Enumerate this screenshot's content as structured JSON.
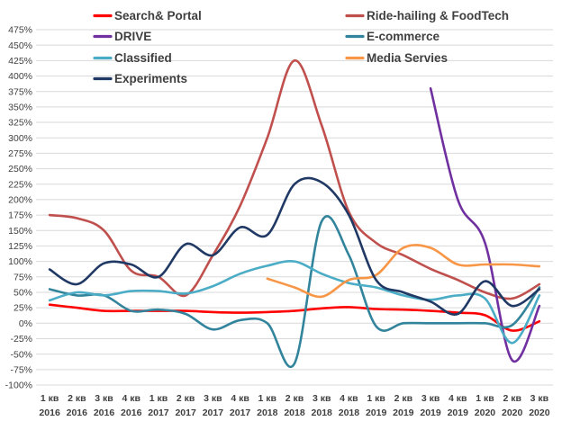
{
  "chart_data": {
    "type": "line",
    "title": "",
    "xlabel": "",
    "ylabel": "",
    "ylim": [
      -100,
      475
    ],
    "y_step": 25,
    "y_tick_format": "percent",
    "grid": true,
    "legend_position": "top",
    "categories": [
      [
        "1 кв",
        "2016"
      ],
      [
        "2 кв",
        "2016"
      ],
      [
        "3 кв",
        "2016"
      ],
      [
        "4 кв",
        "2016"
      ],
      [
        "1 кв",
        "2017"
      ],
      [
        "2 кв",
        "2017"
      ],
      [
        "3 кв",
        "2017"
      ],
      [
        "4 кв",
        "2017"
      ],
      [
        "1 кв",
        "2018"
      ],
      [
        "2 кв",
        "2018"
      ],
      [
        "3 кв",
        "2018"
      ],
      [
        "4 кв",
        "2018"
      ],
      [
        "1 кв",
        "2019"
      ],
      [
        "2 кв",
        "2019"
      ],
      [
        "3 кв",
        "2019"
      ],
      [
        "4 кв",
        "2019"
      ],
      [
        "1 кв",
        "2020"
      ],
      [
        "2 кв",
        "2020"
      ],
      [
        "3 кв",
        "2020"
      ]
    ],
    "series": [
      {
        "name": "Search& Portal",
        "color": "#ff0000",
        "values": [
          30,
          25,
          20,
          20,
          20,
          20,
          18,
          17,
          18,
          20,
          24,
          26,
          23,
          22,
          20,
          17,
          13,
          -12,
          3
        ]
      },
      {
        "name": "Ride-hailing & FoodTech",
        "color": "#c0504d",
        "values": [
          175,
          170,
          150,
          85,
          75,
          45,
          110,
          190,
          300,
          425,
          320,
          180,
          130,
          110,
          88,
          70,
          50,
          40,
          63
        ]
      },
      {
        "name": "DRIVE",
        "color": "#7030a0",
        "values": [
          null,
          null,
          null,
          null,
          null,
          null,
          null,
          null,
          null,
          null,
          null,
          null,
          null,
          null,
          380,
          200,
          130,
          -60,
          28
        ]
      },
      {
        "name": "E-commerce",
        "color": "#31849b",
        "values": [
          55,
          45,
          45,
          20,
          22,
          15,
          -10,
          5,
          0,
          -65,
          165,
          110,
          -5,
          0,
          0,
          0,
          0,
          -3,
          58
        ]
      },
      {
        "name": "Classified",
        "color": "#4bacc6",
        "values": [
          37,
          50,
          45,
          52,
          52,
          48,
          60,
          80,
          93,
          100,
          80,
          65,
          58,
          45,
          38,
          45,
          40,
          -32,
          45
        ]
      },
      {
        "name": "Media Servies",
        "color": "#f79646",
        "values": [
          null,
          null,
          null,
          null,
          null,
          null,
          null,
          null,
          72,
          58,
          43,
          70,
          78,
          122,
          122,
          95,
          95,
          95,
          92
        ]
      },
      {
        "name": "Experiments",
        "color": "#1f3864",
        "values": [
          87,
          63,
          97,
          95,
          75,
          128,
          110,
          155,
          143,
          225,
          228,
          175,
          70,
          50,
          35,
          15,
          68,
          28,
          55
        ]
      }
    ]
  }
}
